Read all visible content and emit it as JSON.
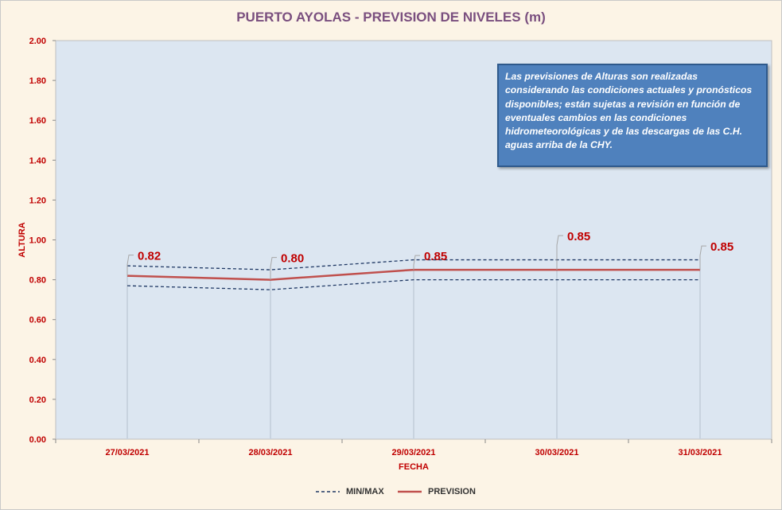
{
  "chart_data": {
    "type": "line",
    "title": "PUERTO AYOLAS - PREVISION DE NIVELES (m)",
    "xlabel": "FECHA",
    "ylabel": "ALTURA",
    "ylim": [
      0,
      2
    ],
    "yticks": [
      "0.00",
      "0.20",
      "0.40",
      "0.60",
      "0.80",
      "1.00",
      "1.20",
      "1.40",
      "1.60",
      "1.80",
      "2.00"
    ],
    "categories": [
      "27/03/2021",
      "28/03/2021",
      "29/03/2021",
      "30/03/2021",
      "31/03/2021"
    ],
    "series": [
      {
        "name": "PREVISION",
        "values": [
          0.82,
          0.8,
          0.85,
          0.85,
          0.85
        ],
        "color": "#c0504d",
        "style": "solid",
        "labels": [
          "0.82",
          "0.80",
          "0.85",
          "0.85",
          "0.85"
        ]
      },
      {
        "name": "MIN/MAX",
        "role": "max",
        "values": [
          0.87,
          0.85,
          0.9,
          0.9,
          0.9
        ],
        "color": "#1f3864",
        "style": "dashed"
      },
      {
        "name": "MIN/MAX",
        "role": "min",
        "values": [
          0.77,
          0.75,
          0.8,
          0.8,
          0.8
        ],
        "color": "#1f3864",
        "style": "dashed"
      }
    ],
    "grid": false,
    "legend": "bottom",
    "annotation": "Las previsiones de Alturas son realizadas considerando las condiciones actuales y pronósticos disponibles;  están sujetas a revisión en función de eventuales cambios en las condiciones hidrometeorológicas y de las descargas de las C.H. aguas arriba de la CHY."
  },
  "legend": {
    "minmax": "MIN/MAX",
    "prevision": "PREVISION"
  },
  "colors": {
    "plot_bg": "#dce6f1",
    "chart_bg": "#fcf4e6",
    "title": "#7a4f7f",
    "axis_label": "#c00000",
    "note_bg": "#4f81bd"
  }
}
